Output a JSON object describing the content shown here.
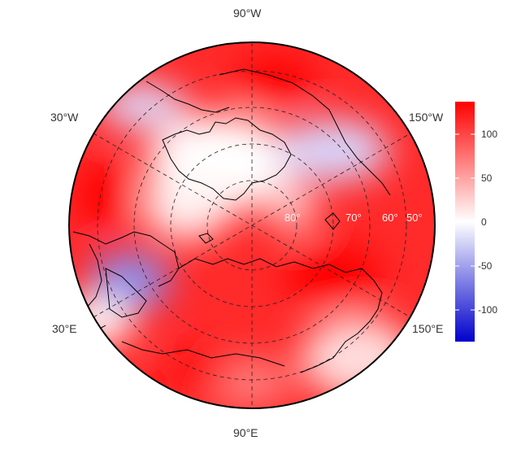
{
  "map": {
    "projection": "north-polar-stereographic",
    "longitude_labels": {
      "top": "90°W",
      "bottom": "90°E",
      "upper_left": "30°W",
      "upper_right": "150°W",
      "lower_left": "30°E",
      "lower_right": "150°E"
    },
    "latitude_labels": [
      "80°",
      "70°",
      "60°",
      "50°"
    ],
    "graticule_style": "dashed",
    "coastlines": "black"
  },
  "colorbar": {
    "ticks": [
      "100",
      "50",
      "0",
      "-50",
      "-100"
    ],
    "tick_values": [
      100,
      50,
      0,
      -50,
      -100
    ],
    "range": [
      -130,
      130
    ],
    "colors": {
      "high": "#ff0000",
      "mid": "#ffffff",
      "low": "#0000cc"
    }
  },
  "field": {
    "type": "diverging",
    "description_colors": {
      "positive": "#ff0000",
      "negative": "#3344dd"
    }
  }
}
